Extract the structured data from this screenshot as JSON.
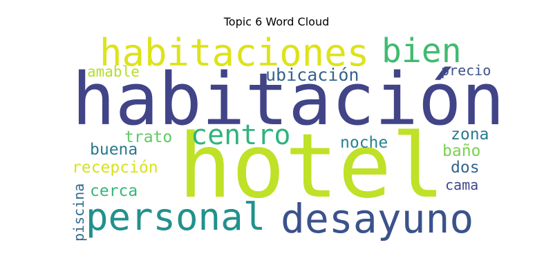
{
  "title": "Topic 6 Word Cloud",
  "words": [
    {
      "text": "hotel",
      "color": "#bfe127"
    },
    {
      "text": "habitación",
      "color": "#414487"
    },
    {
      "text": "habitaciones",
      "color": "#dde318"
    },
    {
      "text": "bien",
      "color": "#3fbb6f"
    },
    {
      "text": "personal",
      "color": "#21918c"
    },
    {
      "text": "desayuno",
      "color": "#3b528b"
    },
    {
      "text": "centro",
      "color": "#2fb47c"
    },
    {
      "text": "ubicación",
      "color": "#33638d"
    },
    {
      "text": "amable",
      "color": "#b5de2b"
    },
    {
      "text": "precio",
      "color": "#3b528b"
    },
    {
      "text": "trato",
      "color": "#5ec962"
    },
    {
      "text": "noche",
      "color": "#26828e"
    },
    {
      "text": "zona",
      "color": "#2a788e"
    },
    {
      "text": "buena",
      "color": "#2a788e"
    },
    {
      "text": "baño",
      "color": "#7ad151"
    },
    {
      "text": "recepción",
      "color": "#d8e219"
    },
    {
      "text": "dos",
      "color": "#33638d"
    },
    {
      "text": "cerca",
      "color": "#35b779"
    },
    {
      "text": "cama",
      "color": "#3e4989"
    },
    {
      "text": "piscina",
      "color": "#31688e"
    }
  ]
}
